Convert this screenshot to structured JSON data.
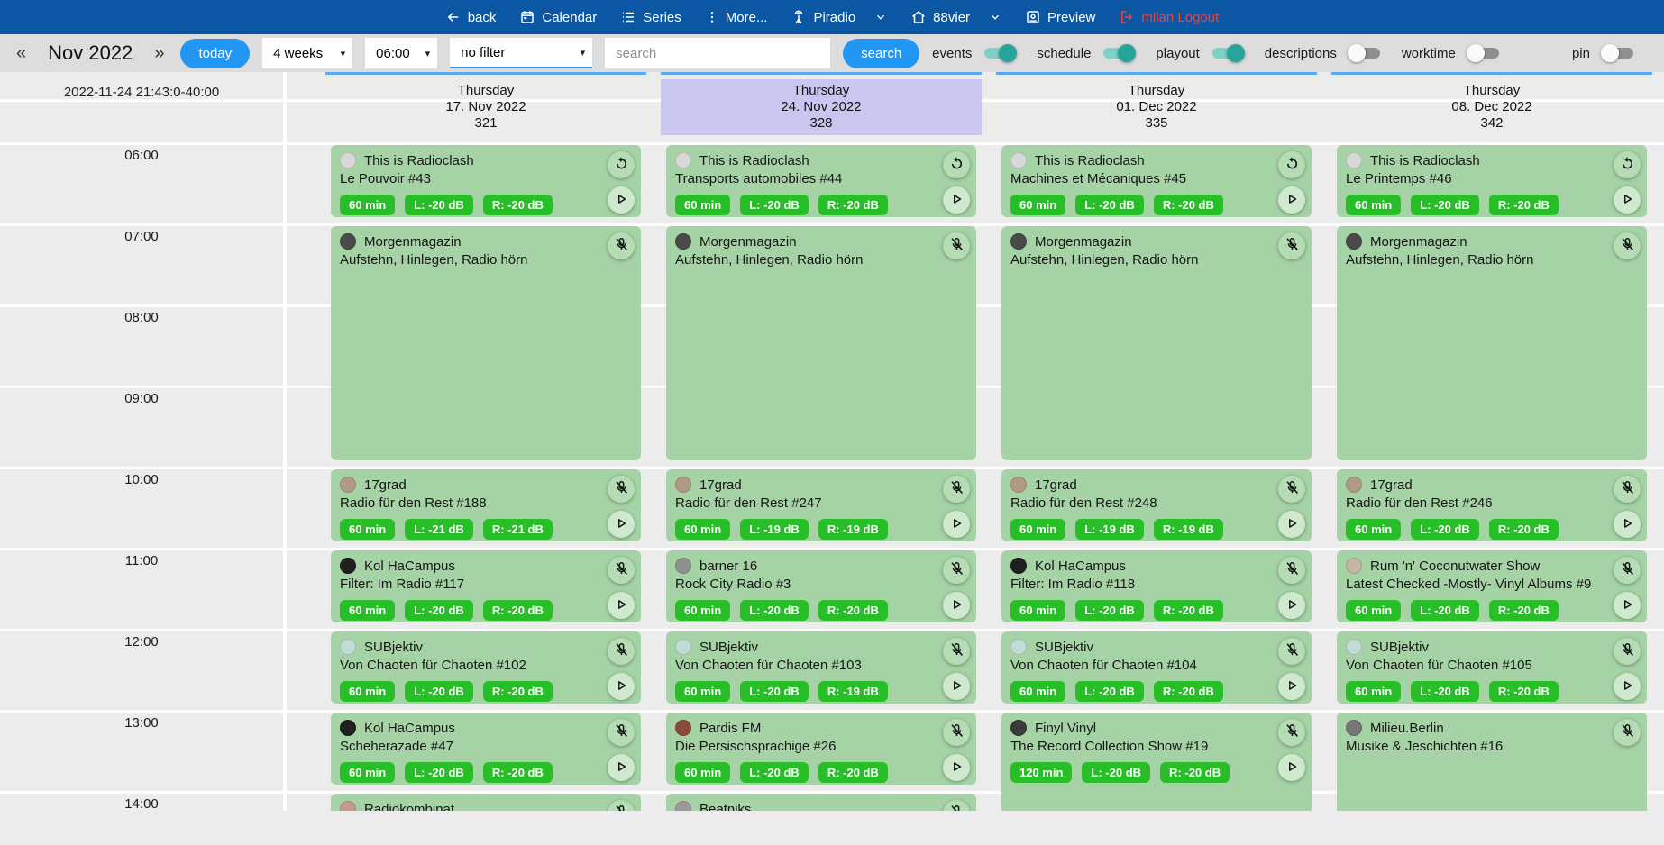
{
  "colors": {
    "navbar_blue": "#0b57a4",
    "accent_blue": "#2196f3",
    "toggle_teal": "#26a69a",
    "card_green": "#a5d3a5",
    "badge_green": "#28be28",
    "highlight_purple": "#c9c6f0",
    "logout_red": "#e84343"
  },
  "navbar": {
    "back_label": "back",
    "calendar_label": "Calendar",
    "series_label": "Series",
    "more_label": "More...",
    "station1_label": "Piradio",
    "station2_label": "88vier",
    "preview_label": "Preview",
    "logout_label": "milan Logout"
  },
  "toolbar": {
    "prev_arrow": "«",
    "month_label": "Nov 2022",
    "next_arrow": "»",
    "today_label": "today",
    "range_select_value": "4 weeks",
    "time_select_value": "06:00",
    "filter_select_value": "no filter",
    "search_placeholder": "search",
    "search_button_label": "search",
    "toggles": [
      {
        "label": "events",
        "on": true
      },
      {
        "label": "schedule",
        "on": true
      },
      {
        "label": "playout",
        "on": true
      },
      {
        "label": "descriptions",
        "on": false
      },
      {
        "label": "worktime",
        "on": false
      }
    ],
    "pin_toggle": {
      "label": "pin",
      "on": false
    }
  },
  "calendar": {
    "corner_label": "2022-11-24 21:43:0-40:00",
    "times": [
      "06:00",
      "07:00",
      "08:00",
      "09:00",
      "10:00",
      "11:00",
      "12:00",
      "13:00",
      "14:00"
    ],
    "days": [
      {
        "weekday": "Thursday",
        "date": "17. Nov 2022",
        "day_number": "321",
        "highlighted": false,
        "events": [
          {
            "show": "This is Radioclash",
            "episode": "Le Pouvoir #43",
            "start": 6,
            "duration": 1,
            "badges": [
              "60 min",
              "L: -20 dB",
              "R: -20 dB"
            ],
            "icons": [
              "replay",
              "play"
            ],
            "avatar_color": "#d9d9d9"
          },
          {
            "show": "Morgenmagazin",
            "episode": "Aufstehn, Hinlegen, Radio hörn",
            "start": 7,
            "duration": 3,
            "badges": [],
            "icons": [
              "mic-off"
            ],
            "avatar_color": "#4a4a4a"
          },
          {
            "show": "17grad",
            "episode": "Radio für den Rest #188",
            "start": 10,
            "duration": 1,
            "badges": [
              "60 min",
              "L: -21 dB",
              "R: -21 dB"
            ],
            "icons": [
              "mic-off",
              "play"
            ],
            "avatar_color": "#b09a85"
          },
          {
            "show": "Kol HaCampus",
            "episode": "Filter: Im Radio #117",
            "start": 11,
            "duration": 1,
            "badges": [
              "60 min",
              "L: -20 dB",
              "R: -20 dB"
            ],
            "icons": [
              "mic-off",
              "play"
            ],
            "avatar_color": "#1f1f1f"
          },
          {
            "show": "SUBjektiv",
            "episode": "Von Chaoten für Chaoten #102",
            "start": 12,
            "duration": 1,
            "badges": [
              "60 min",
              "L: -20 dB",
              "R: -20 dB"
            ],
            "icons": [
              "mic-off",
              "play"
            ],
            "avatar_color": "#c2dcd6"
          },
          {
            "show": "Kol HaCampus",
            "episode": "Scheherazade #47",
            "start": 13,
            "duration": 1,
            "badges": [
              "60 min",
              "L: -20 dB",
              "R: -20 dB"
            ],
            "icons": [
              "mic-off",
              "play"
            ],
            "avatar_color": "#1f1f1f"
          },
          {
            "show": "Radiokombinat",
            "episode": "",
            "start": 14,
            "duration": 1,
            "badges": [],
            "icons": [
              "mic-off"
            ],
            "avatar_color": "#c49a90"
          }
        ]
      },
      {
        "weekday": "Thursday",
        "date": "24. Nov 2022",
        "day_number": "328",
        "highlighted": true,
        "events": [
          {
            "show": "This is Radioclash",
            "episode": "Transports automobiles #44",
            "start": 6,
            "duration": 1,
            "badges": [
              "60 min",
              "L: -20 dB",
              "R: -20 dB"
            ],
            "icons": [
              "replay",
              "play"
            ],
            "avatar_color": "#d9d9d9"
          },
          {
            "show": "Morgenmagazin",
            "episode": "Aufstehn, Hinlegen, Radio hörn",
            "start": 7,
            "duration": 3,
            "badges": [],
            "icons": [
              "mic-off"
            ],
            "avatar_color": "#4a4a4a"
          },
          {
            "show": "17grad",
            "episode": "Radio für den Rest #247",
            "start": 10,
            "duration": 1,
            "badges": [
              "60 min",
              "L: -19 dB",
              "R: -19 dB"
            ],
            "icons": [
              "mic-off",
              "play"
            ],
            "avatar_color": "#b09a85"
          },
          {
            "show": "barner 16",
            "episode": "Rock City Radio #3",
            "start": 11,
            "duration": 1,
            "badges": [
              "60 min",
              "L: -20 dB",
              "R: -20 dB"
            ],
            "icons": [
              "mic-off",
              "play"
            ],
            "avatar_color": "#8f8f8f"
          },
          {
            "show": "SUBjektiv",
            "episode": "Von Chaoten für Chaoten #103",
            "start": 12,
            "duration": 1,
            "badges": [
              "60 min",
              "L: -20 dB",
              "R: -19 dB"
            ],
            "icons": [
              "mic-off",
              "play"
            ],
            "avatar_color": "#c2dcd6"
          },
          {
            "show": "Pardis FM",
            "episode": "Die Persischsprachige #26",
            "start": 13,
            "duration": 1,
            "badges": [
              "60 min",
              "L: -20 dB",
              "R: -20 dB"
            ],
            "icons": [
              "mic-off",
              "play"
            ],
            "avatar_color": "#8a4a3c"
          },
          {
            "show": "Beatniks",
            "episode": "",
            "start": 14,
            "duration": 1,
            "badges": [],
            "icons": [
              "mic-off"
            ],
            "avatar_color": "#9a9a9a"
          }
        ]
      },
      {
        "weekday": "Thursday",
        "date": "01. Dec 2022",
        "day_number": "335",
        "highlighted": false,
        "events": [
          {
            "show": "This is Radioclash",
            "episode": "Machines et Mécaniques #45",
            "start": 6,
            "duration": 1,
            "badges": [
              "60 min",
              "L: -20 dB",
              "R: -20 dB"
            ],
            "icons": [
              "replay",
              "play"
            ],
            "avatar_color": "#d9d9d9"
          },
          {
            "show": "Morgenmagazin",
            "episode": "Aufstehn, Hinlegen, Radio hörn",
            "start": 7,
            "duration": 3,
            "badges": [],
            "icons": [
              "mic-off"
            ],
            "avatar_color": "#4a4a4a"
          },
          {
            "show": "17grad",
            "episode": "Radio für den Rest #248",
            "start": 10,
            "duration": 1,
            "badges": [
              "60 min",
              "L: -19 dB",
              "R: -19 dB"
            ],
            "icons": [
              "mic-off",
              "play"
            ],
            "avatar_color": "#b09a85"
          },
          {
            "show": "Kol HaCampus",
            "episode": "Filter: Im Radio #118",
            "start": 11,
            "duration": 1,
            "badges": [
              "60 min",
              "L: -20 dB",
              "R: -20 dB"
            ],
            "icons": [
              "mic-off",
              "play"
            ],
            "avatar_color": "#1f1f1f"
          },
          {
            "show": "SUBjektiv",
            "episode": "Von Chaoten für Chaoten #104",
            "start": 12,
            "duration": 1,
            "badges": [
              "60 min",
              "L: -20 dB",
              "R: -20 dB"
            ],
            "icons": [
              "mic-off",
              "play"
            ],
            "avatar_color": "#c2dcd6"
          },
          {
            "show": "Finyl Vinyl",
            "episode": "The Record Collection Show #19",
            "start": 13,
            "duration": 2,
            "badges": [
              "120 min",
              "L: -20 dB",
              "R: -20 dB"
            ],
            "icons": [
              "mic-off",
              "play"
            ],
            "avatar_color": "#3a3a3a"
          }
        ]
      },
      {
        "weekday": "Thursday",
        "date": "08. Dec 2022",
        "day_number": "342",
        "highlighted": false,
        "events": [
          {
            "show": "This is Radioclash",
            "episode": "Le Printemps #46",
            "start": 6,
            "duration": 1,
            "badges": [
              "60 min",
              "L: -20 dB",
              "R: -20 dB"
            ],
            "icons": [
              "replay",
              "play"
            ],
            "avatar_color": "#d9d9d9"
          },
          {
            "show": "Morgenmagazin",
            "episode": "Aufstehn, Hinlegen, Radio hörn",
            "start": 7,
            "duration": 3,
            "badges": [],
            "icons": [
              "mic-off"
            ],
            "avatar_color": "#4a4a4a"
          },
          {
            "show": "17grad",
            "episode": "Radio für den Rest #246",
            "start": 10,
            "duration": 1,
            "badges": [
              "60 min",
              "L: -20 dB",
              "R: -20 dB"
            ],
            "icons": [
              "mic-off",
              "play"
            ],
            "avatar_color": "#b09a85"
          },
          {
            "show": "Rum 'n' Coconutwater Show",
            "episode": "Latest Checked -Mostly- Vinyl Albums #9",
            "start": 11,
            "duration": 1,
            "badges": [
              "60 min",
              "L: -20 dB",
              "R: -20 dB"
            ],
            "icons": [
              "mic-off",
              "play"
            ],
            "avatar_color": "#c4b8a4"
          },
          {
            "show": "SUBjektiv",
            "episode": "Von Chaoten für Chaoten #105",
            "start": 12,
            "duration": 1,
            "badges": [
              "60 min",
              "L: -20 dB",
              "R: -20 dB"
            ],
            "icons": [
              "mic-off",
              "play"
            ],
            "avatar_color": "#c2dcd6"
          },
          {
            "show": "Milieu.Berlin",
            "episode": "Musike & Jeschichten #16",
            "start": 13,
            "duration": 2,
            "badges": [],
            "icons": [
              "mic-off"
            ],
            "avatar_color": "#777777"
          }
        ]
      }
    ]
  }
}
